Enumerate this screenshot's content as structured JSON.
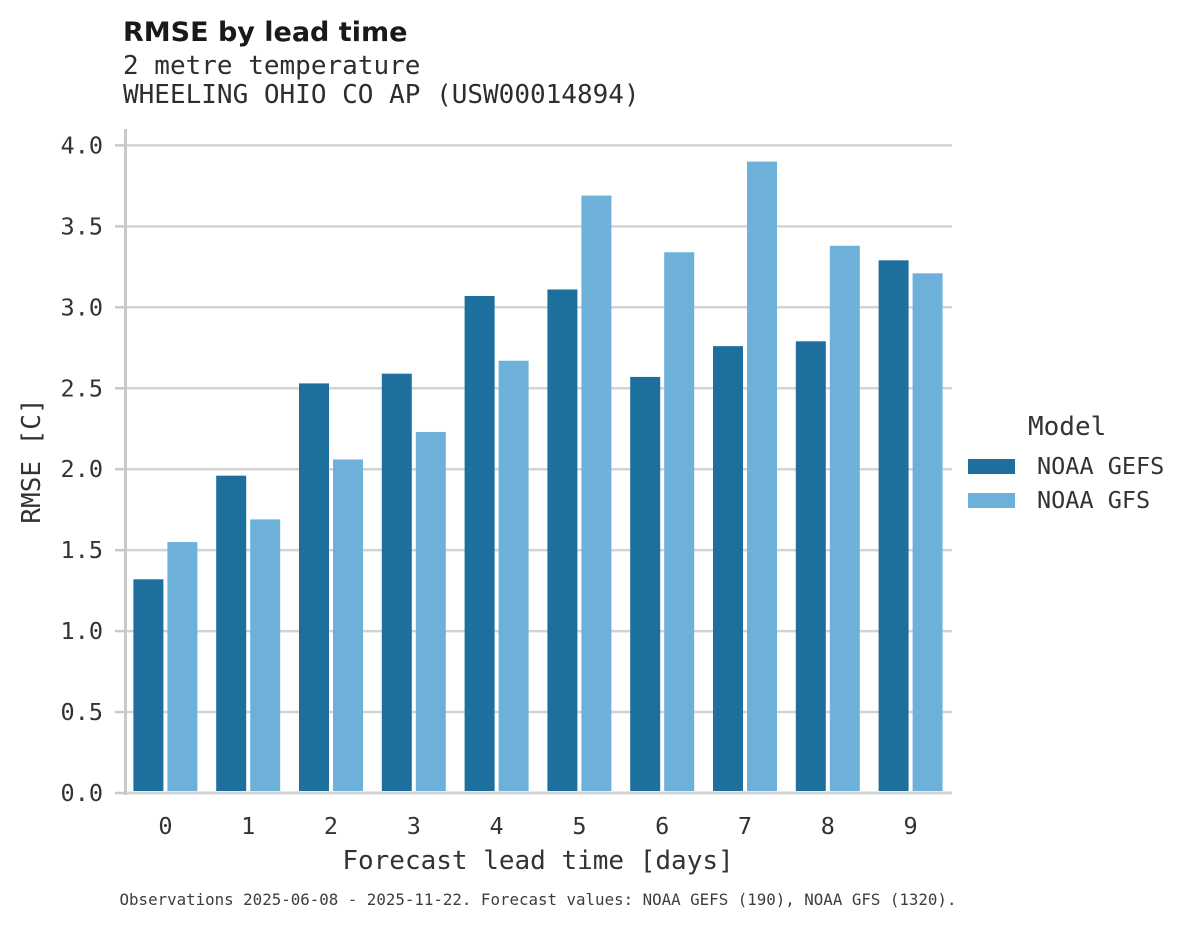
{
  "header": {
    "title": "RMSE by lead time",
    "subtitle": "2 metre temperature",
    "station": "WHEELING OHIO CO AP (USW00014894)"
  },
  "chart_data": {
    "type": "bar",
    "categories": [
      "0",
      "1",
      "2",
      "3",
      "4",
      "5",
      "6",
      "7",
      "8",
      "9"
    ],
    "series": [
      {
        "name": "NOAA GEFS",
        "color": "#1d6f9e",
        "values": [
          1.32,
          1.96,
          2.53,
          2.59,
          3.07,
          3.11,
          2.57,
          2.76,
          2.79,
          3.29
        ]
      },
      {
        "name": "NOAA GFS",
        "color": "#6db1da",
        "values": [
          1.55,
          1.69,
          2.06,
          2.23,
          2.67,
          3.69,
          3.34,
          3.9,
          3.38,
          3.21
        ]
      }
    ],
    "xlabel": "Forecast lead time [days]",
    "ylabel": "RMSE [C]",
    "ylim": [
      0.0,
      4.1
    ],
    "ytick_step": 0.5,
    "grid": true,
    "legend": {
      "title": "Model",
      "position": "right"
    }
  },
  "caption": "Observations 2025-06-08 - 2025-11-22. Forecast values: NOAA GEFS (190), NOAA GFS (1320).",
  "colors": {
    "grid": "#d3d3d3",
    "spine": "#c9c9c9",
    "tick_text": "#333333"
  }
}
